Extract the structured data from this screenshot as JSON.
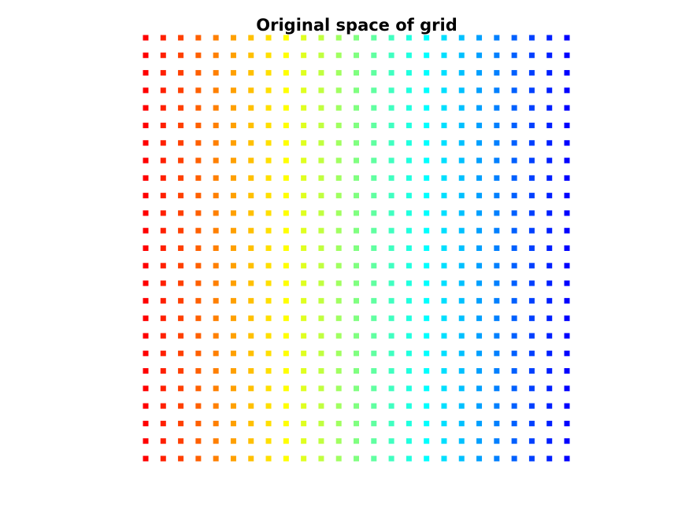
{
  "chart_data": {
    "type": "scatter",
    "title": "Original space of grid",
    "xlabel": "",
    "ylabel": "",
    "axes_visible": false,
    "grid": false,
    "legend": "none",
    "marker": "square",
    "colormap": "jet",
    "color_encoding": "x",
    "x": [
      1,
      2,
      3,
      4,
      5,
      6,
      7,
      8,
      9,
      10,
      11,
      12,
      13,
      14,
      15,
      16,
      17,
      18,
      19,
      20,
      21,
      22,
      23,
      24,
      25
    ],
    "y": [
      1,
      2,
      3,
      4,
      5,
      6,
      7,
      8,
      9,
      10,
      11,
      12,
      13,
      14,
      15,
      16,
      17,
      18,
      19,
      20,
      21,
      22,
      23,
      24,
      25
    ],
    "xlim": [
      1,
      25
    ],
    "ylim": [
      1,
      25
    ],
    "color_stops": [
      "#ff0000",
      "#ff8000",
      "#ffff00",
      "#80ff80",
      "#00ffff",
      "#0080ff",
      "#0000ff"
    ]
  }
}
